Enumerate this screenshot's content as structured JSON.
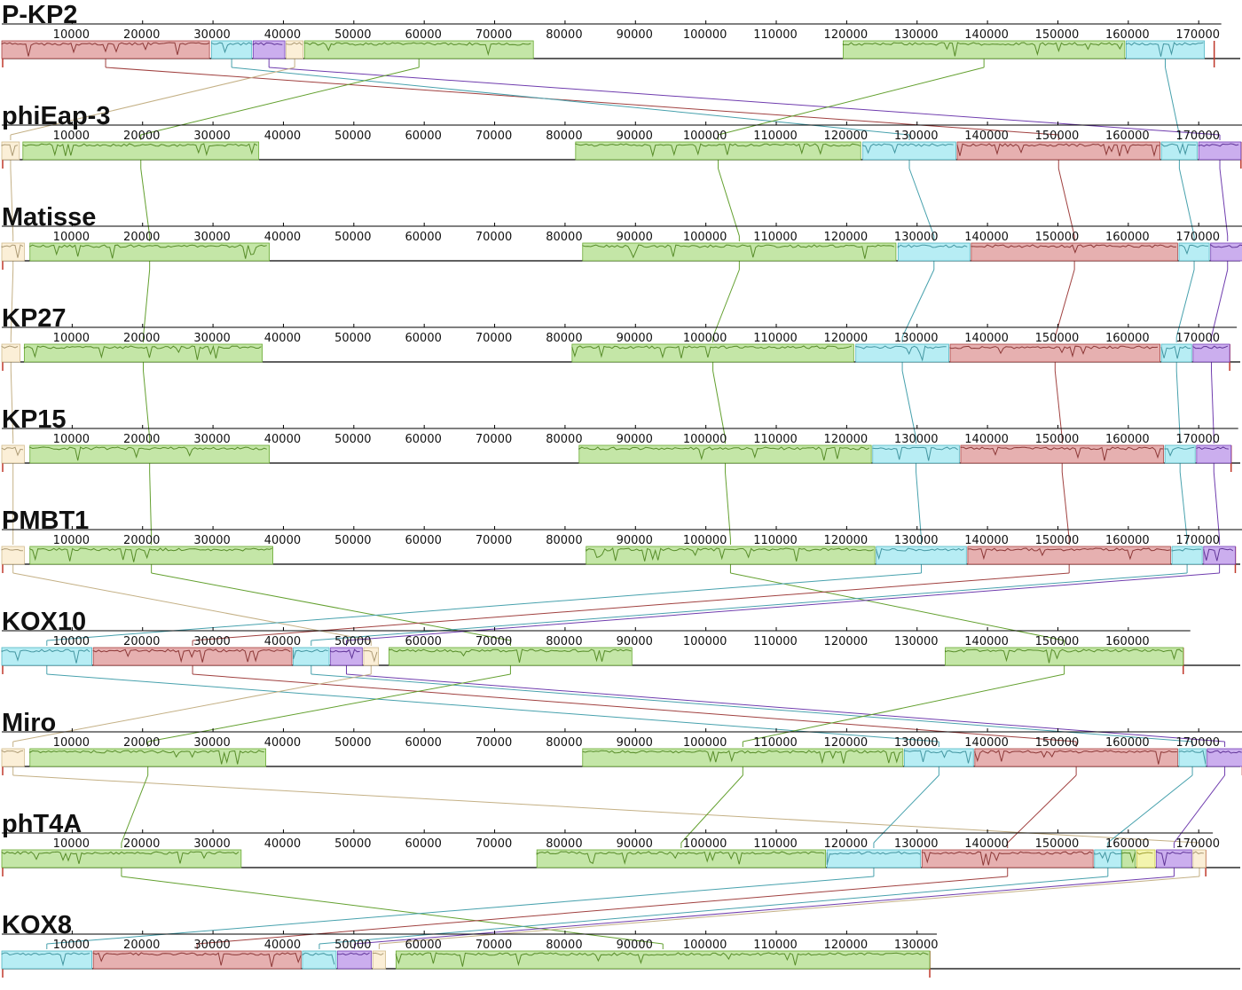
{
  "colors": {
    "tan": "#f5dca6",
    "red": "#c8504f",
    "cyan": "#5fd6e6",
    "purple": "#8b4bd9",
    "green": "#7cc83b",
    "yellow": "#e5e64a",
    "blue": "#2f7de0"
  },
  "genomes": [
    {
      "name": "P-KP2",
      "length_bp": 172200,
      "ticks": [
        "10000",
        "20000",
        "30000",
        "40000",
        "50000",
        "60000",
        "70000",
        "80000",
        "90000",
        "100000",
        "110000",
        "120000",
        "130000",
        "140000",
        "150000",
        "160000",
        "170000"
      ],
      "blocks": [
        {
          "color": "red",
          "start": 0,
          "end": 29500,
          "strand": "+"
        },
        {
          "color": "cyan",
          "start": 29800,
          "end": 35500,
          "strand": "+"
        },
        {
          "color": "purple",
          "start": 35700,
          "end": 40200,
          "strand": "+"
        },
        {
          "color": "tan",
          "start": 40400,
          "end": 42800,
          "strand": "+"
        },
        {
          "color": "green",
          "start": 43000,
          "end": 75500,
          "strand": "+"
        },
        {
          "color": "green",
          "start": 119500,
          "end": 159500,
          "strand": "+"
        },
        {
          "color": "cyan",
          "start": 159700,
          "end": 170800,
          "strand": "+"
        }
      ]
    },
    {
      "name": "phiEap-3",
      "length_bp": 176000,
      "ticks": [
        "10000",
        "20000",
        "30000",
        "40000",
        "50000",
        "60000",
        "70000",
        "80000",
        "90000",
        "100000",
        "110000",
        "120000",
        "130000",
        "140000",
        "150000",
        "160000",
        "170000"
      ],
      "blocks": [
        {
          "color": "tan",
          "start": 0,
          "end": 2500,
          "strand": "+"
        },
        {
          "color": "green",
          "start": 3000,
          "end": 36500,
          "strand": "+"
        },
        {
          "color": "green",
          "start": 81500,
          "end": 122000,
          "strand": "+"
        },
        {
          "color": "cyan",
          "start": 122300,
          "end": 135500,
          "strand": "+"
        },
        {
          "color": "red",
          "start": 135700,
          "end": 164500,
          "strand": "+"
        },
        {
          "color": "cyan",
          "start": 164700,
          "end": 169800,
          "strand": "+"
        },
        {
          "color": "purple",
          "start": 170000,
          "end": 176000,
          "strand": "+"
        }
      ]
    },
    {
      "name": "Matisse",
      "length_bp": 176500,
      "ticks": [
        "10000",
        "20000",
        "30000",
        "40000",
        "50000",
        "60000",
        "70000",
        "80000",
        "90000",
        "100000",
        "110000",
        "120000",
        "130000",
        "140000",
        "150000",
        "160000",
        "170000"
      ],
      "blocks": [
        {
          "color": "tan",
          "start": 0,
          "end": 3200,
          "strand": "+"
        },
        {
          "color": "green",
          "start": 4000,
          "end": 38000,
          "strand": "+"
        },
        {
          "color": "green",
          "start": 82500,
          "end": 127000,
          "strand": "+"
        },
        {
          "color": "cyan",
          "start": 127300,
          "end": 137500,
          "strand": "+"
        },
        {
          "color": "red",
          "start": 137700,
          "end": 167000,
          "strand": "+"
        },
        {
          "color": "cyan",
          "start": 167200,
          "end": 171500,
          "strand": "+"
        },
        {
          "color": "purple",
          "start": 171700,
          "end": 176500,
          "strand": "+"
        }
      ]
    },
    {
      "name": "KP27",
      "length_bp": 174400,
      "ticks": [
        "10000",
        "20000",
        "30000",
        "40000",
        "50000",
        "60000",
        "70000",
        "80000",
        "90000",
        "100000",
        "110000",
        "120000",
        "130000",
        "140000",
        "150000",
        "160000",
        "170000"
      ],
      "blocks": [
        {
          "color": "tan",
          "start": 0,
          "end": 2600,
          "strand": "+"
        },
        {
          "color": "green",
          "start": 3200,
          "end": 37000,
          "strand": "+"
        },
        {
          "color": "green",
          "start": 81000,
          "end": 121000,
          "strand": "+"
        },
        {
          "color": "cyan",
          "start": 121300,
          "end": 134500,
          "strand": "+"
        },
        {
          "color": "red",
          "start": 134700,
          "end": 164500,
          "strand": "+"
        },
        {
          "color": "cyan",
          "start": 164700,
          "end": 169000,
          "strand": "+"
        },
        {
          "color": "purple",
          "start": 169200,
          "end": 174400,
          "strand": "+"
        }
      ]
    },
    {
      "name": "KP15",
      "length_bp": 174600,
      "ticks": [
        "10000",
        "20000",
        "30000",
        "40000",
        "50000",
        "60000",
        "70000",
        "80000",
        "90000",
        "100000",
        "110000",
        "120000",
        "130000",
        "140000",
        "150000",
        "160000",
        "170000"
      ],
      "blocks": [
        {
          "color": "tan",
          "start": 0,
          "end": 3200,
          "strand": "+"
        },
        {
          "color": "green",
          "start": 4000,
          "end": 38000,
          "strand": "+"
        },
        {
          "color": "green",
          "start": 82000,
          "end": 123500,
          "strand": "+"
        },
        {
          "color": "cyan",
          "start": 123700,
          "end": 136000,
          "strand": "+"
        },
        {
          "color": "red",
          "start": 136200,
          "end": 165000,
          "strand": "+"
        },
        {
          "color": "cyan",
          "start": 165200,
          "end": 169500,
          "strand": "+"
        },
        {
          "color": "purple",
          "start": 169700,
          "end": 174600,
          "strand": "+"
        }
      ]
    },
    {
      "name": "PMBT1",
      "length_bp": 175200,
      "ticks": [
        "10000",
        "20000",
        "30000",
        "40000",
        "50000",
        "60000",
        "70000",
        "80000",
        "90000",
        "100000",
        "110000",
        "120000",
        "130000",
        "140000",
        "150000",
        "160000",
        "170000"
      ],
      "blocks": [
        {
          "color": "tan",
          "start": 0,
          "end": 3200,
          "strand": "+"
        },
        {
          "color": "green",
          "start": 4000,
          "end": 38500,
          "strand": "+"
        },
        {
          "color": "green",
          "start": 83000,
          "end": 124000,
          "strand": "+"
        },
        {
          "color": "cyan",
          "start": 124200,
          "end": 137000,
          "strand": "+"
        },
        {
          "color": "red",
          "start": 137200,
          "end": 166000,
          "strand": "+"
        },
        {
          "color": "cyan",
          "start": 166200,
          "end": 170500,
          "strand": "+"
        },
        {
          "color": "purple",
          "start": 170700,
          "end": 175200,
          "strand": "+"
        }
      ]
    },
    {
      "name": "KOX10",
      "length_bp": 167800,
      "ticks": [
        "10000",
        "20000",
        "30000",
        "40000",
        "50000",
        "60000",
        "70000",
        "80000",
        "90000",
        "100000",
        "110000",
        "120000",
        "130000",
        "140000",
        "150000",
        "160000"
      ],
      "blocks": [
        {
          "color": "cyan",
          "start": 0,
          "end": 12800,
          "strand": "+"
        },
        {
          "color": "red",
          "start": 13000,
          "end": 41200,
          "strand": "+"
        },
        {
          "color": "cyan",
          "start": 41400,
          "end": 46500,
          "strand": "+"
        },
        {
          "color": "purple",
          "start": 46700,
          "end": 51200,
          "strand": "+"
        },
        {
          "color": "tan",
          "start": 51400,
          "end": 53500,
          "strand": "+"
        },
        {
          "color": "green",
          "start": 55000,
          "end": 89500,
          "strand": "+"
        },
        {
          "color": "green",
          "start": 134000,
          "end": 167800,
          "strand": "+"
        }
      ]
    },
    {
      "name": "Miro",
      "length_bp": 176200,
      "ticks": [
        "10000",
        "20000",
        "30000",
        "40000",
        "50000",
        "60000",
        "70000",
        "80000",
        "90000",
        "100000",
        "110000",
        "120000",
        "130000",
        "140000",
        "150000",
        "160000",
        "170000"
      ],
      "blocks": [
        {
          "color": "tan",
          "start": 0,
          "end": 3200,
          "strand": "+"
        },
        {
          "color": "green",
          "start": 4000,
          "end": 37500,
          "strand": "+"
        },
        {
          "color": "green",
          "start": 82500,
          "end": 128000,
          "strand": "+"
        },
        {
          "color": "cyan",
          "start": 128200,
          "end": 138000,
          "strand": "+"
        },
        {
          "color": "red",
          "start": 138200,
          "end": 167000,
          "strand": "+"
        },
        {
          "color": "cyan",
          "start": 167200,
          "end": 171000,
          "strand": "+"
        },
        {
          "color": "purple",
          "start": 171200,
          "end": 176200,
          "strand": "+"
        }
      ]
    },
    {
      "name": "phT4A",
      "length_bp": 171000,
      "ticks": [
        "10000",
        "20000",
        "30000",
        "40000",
        "50000",
        "60000",
        "70000",
        "80000",
        "90000",
        "100000",
        "110000",
        "120000",
        "130000",
        "140000",
        "150000",
        "160000",
        "170000"
      ],
      "blocks": [
        {
          "color": "green",
          "start": 0,
          "end": 34000,
          "strand": "+"
        },
        {
          "color": "green",
          "start": 76000,
          "end": 117000,
          "strand": "+"
        },
        {
          "color": "cyan",
          "start": 117200,
          "end": 130500,
          "strand": "+"
        },
        {
          "color": "red",
          "start": 130700,
          "end": 155000,
          "strand": "+"
        },
        {
          "color": "cyan",
          "start": 155200,
          "end": 159000,
          "strand": "+"
        },
        {
          "color": "green",
          "start": 159100,
          "end": 161000,
          "strand": "+"
        },
        {
          "color": "yellow",
          "start": 161200,
          "end": 163800,
          "strand": "+"
        },
        {
          "color": "purple",
          "start": 164000,
          "end": 169000,
          "strand": "+"
        },
        {
          "color": "tan",
          "start": 169200,
          "end": 171000,
          "strand": "+"
        }
      ]
    },
    {
      "name": "KOX8",
      "length_bp": 131800,
      "ticks": [
        "10000",
        "20000",
        "30000",
        "40000",
        "50000",
        "60000",
        "70000",
        "80000",
        "90000",
        "100000",
        "110000",
        "120000",
        "130000"
      ],
      "blocks": [
        {
          "color": "cyan",
          "start": 0,
          "end": 12800,
          "strand": "+"
        },
        {
          "color": "red",
          "start": 13000,
          "end": 42500,
          "strand": "+"
        },
        {
          "color": "cyan",
          "start": 42700,
          "end": 47500,
          "strand": "+"
        },
        {
          "color": "purple",
          "start": 47700,
          "end": 52500,
          "strand": "+"
        },
        {
          "color": "tan",
          "start": 52700,
          "end": 54500,
          "strand": "+"
        },
        {
          "color": "green",
          "start": 56000,
          "end": 131800,
          "strand": "+"
        }
      ]
    }
  ],
  "connectors": [
    {
      "color": "red",
      "pos": [
        14500,
        0,
        0,
        0,
        0,
        0,
        0,
        0,
        0,
        0
      ]
    }
  ]
}
